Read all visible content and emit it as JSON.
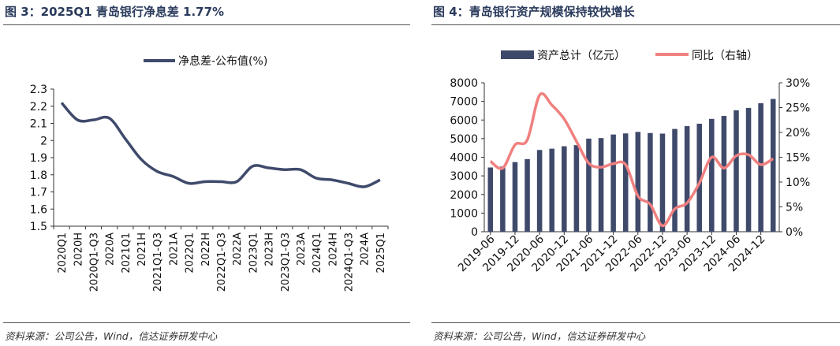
{
  "left": {
    "figure_title": "图 3：2025Q1 青岛银行净息差 1.77%",
    "source": "资料来源：公司公告，Wind，信达证券研发中心"
  },
  "right": {
    "figure_title": "图 4：青岛银行资产规模保持较快增长",
    "source": "资料来源：公司公告，Wind，信达证券研发中心"
  },
  "colors": {
    "nim_line": "#3f4a6b",
    "bars": "#3f4a6b",
    "yoy_line": "#f08080"
  },
  "chart_data": [
    {
      "type": "line",
      "title": "",
      "x": [
        "2020Q1",
        "2020H",
        "2020Q1-Q3",
        "2020A",
        "2021Q1",
        "2021H",
        "2021Q1-Q3",
        "2021A",
        "2022Q1",
        "2022H",
        "2022Q1-Q3",
        "2022A",
        "2023Q1",
        "2023H",
        "2023Q1-Q3",
        "2023A",
        "2024Q1",
        "2024H",
        "2024Q1-Q3",
        "2024A",
        "2025Q1"
      ],
      "series": [
        {
          "name": "净息差-公布值(%)",
          "values": [
            2.22,
            2.12,
            2.12,
            2.13,
            2.01,
            1.89,
            1.82,
            1.79,
            1.75,
            1.76,
            1.76,
            1.76,
            1.85,
            1.84,
            1.83,
            1.83,
            1.78,
            1.77,
            1.75,
            1.73,
            1.77
          ]
        }
      ],
      "ylim": [
        1.5,
        2.3
      ],
      "yticks": [
        "1.5",
        "1.6",
        "1.7",
        "1.8",
        "1.9",
        "2",
        "2.1",
        "2.2",
        "2.3"
      ],
      "legend": "top-center",
      "grid": false
    },
    {
      "type": "bar",
      "title": "",
      "x": [
        "2019-06",
        "2019-09",
        "2019-12",
        "2020-03",
        "2020-06",
        "2020-09",
        "2020-12",
        "2021-03",
        "2021-06",
        "2021-09",
        "2021-12",
        "2022-03",
        "2022-06",
        "2022-09",
        "2022-12",
        "2023-03",
        "2023-06",
        "2023-09",
        "2023-12",
        "2024-03",
        "2024-06",
        "2024-09",
        "2024-12",
        "2025-03"
      ],
      "xtick_labels": [
        "2019-06",
        "2019-12",
        "2020-06",
        "2020-12",
        "2021-06",
        "2021-12",
        "2022-06",
        "2022-12",
        "2023-06",
        "2023-12",
        "2024-06",
        "2024-12"
      ],
      "series": [
        {
          "name": "资产总计（亿元）",
          "type": "bar",
          "axis": "left",
          "values": [
            3450,
            3500,
            3740,
            3900,
            4390,
            4460,
            4590,
            4650,
            5000,
            5030,
            5220,
            5280,
            5360,
            5300,
            5270,
            5520,
            5670,
            5800,
            6060,
            6220,
            6520,
            6650,
            6900,
            7130
          ]
        },
        {
          "name": "同比（右轴）",
          "type": "line",
          "axis": "right",
          "values": [
            14.2,
            12.8,
            17.5,
            18.5,
            27.5,
            25.5,
            22.7,
            18.2,
            13.8,
            13.0,
            13.7,
            13.5,
            7.2,
            5.5,
            1.2,
            4.6,
            5.8,
            9.8,
            15.0,
            12.8,
            15.3,
            15.5,
            13.5,
            14.7
          ]
        }
      ],
      "ylim_left": [
        0,
        8000
      ],
      "ylim_right": [
        0,
        30
      ],
      "yticks_left": [
        "0",
        "1000",
        "2000",
        "3000",
        "4000",
        "5000",
        "6000",
        "7000",
        "8000"
      ],
      "yticks_right": [
        "0%",
        "5%",
        "10%",
        "15%",
        "20%",
        "25%",
        "30%"
      ],
      "legend": "top-center",
      "grid": false
    }
  ]
}
